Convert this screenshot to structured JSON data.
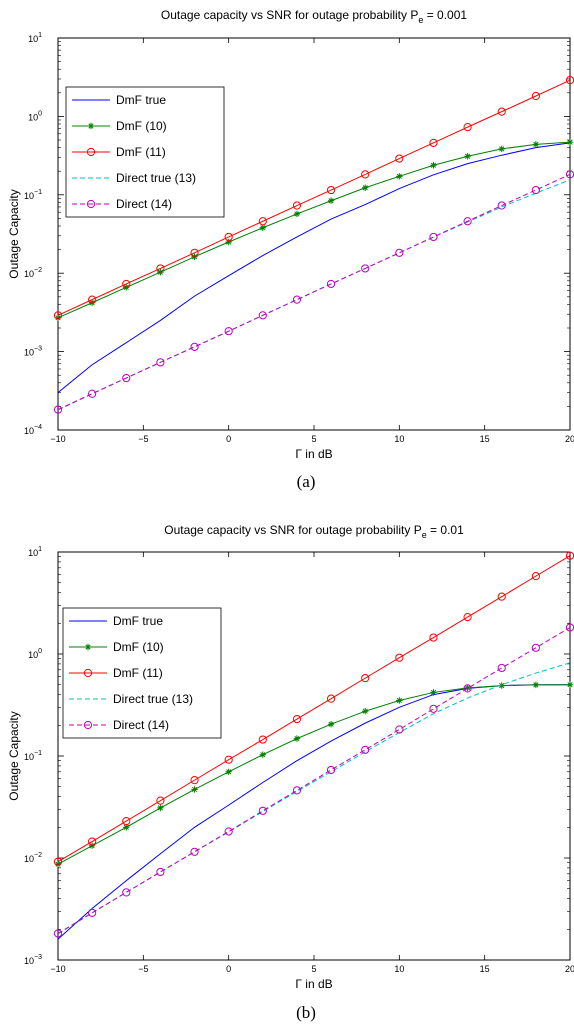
{
  "colors": {
    "dmf_true": "#0000ff",
    "dmf_10": "#008000",
    "dmf_11": "#ff0000",
    "direct_true": "#00bfbf",
    "direct_14": "#bf00bf"
  },
  "chart_data": [
    {
      "type": "line",
      "title": "Outage capacity vs SNR for outage probability P",
      "title_subscript": "e",
      "title_suffix": " = 0.001",
      "xlabel": "Γ in dB",
      "ylabel": "Outage Capacity",
      "caption": "(a)",
      "xlim": [
        -10,
        20
      ],
      "ylim": [
        0.0001,
        10
      ],
      "yscale": "log",
      "x_ticks": [
        "−10",
        "−5",
        "0",
        "5",
        "10",
        "15",
        "20"
      ],
      "y_ticks": [
        {
          "base": "10",
          "exp": "−4"
        },
        {
          "base": "10",
          "exp": "−3"
        },
        {
          "base": "10",
          "exp": "−2"
        },
        {
          "base": "10",
          "exp": "−1"
        },
        {
          "base": "10",
          "exp": "0"
        },
        {
          "base": "10",
          "exp": "1"
        }
      ],
      "legend_position": "upper-left",
      "x": [
        -10,
        -8,
        -6,
        -4,
        -2,
        0,
        2,
        4,
        6,
        8,
        10,
        12,
        14,
        16,
        18,
        20
      ],
      "series": [
        {
          "name": "DmF true",
          "color_key": "dmf_true",
          "dash": "solid",
          "marker": "none",
          "values": [
            0.0003,
            0.00068,
            0.0013,
            0.0025,
            0.0051,
            0.0093,
            0.0168,
            0.029,
            0.049,
            0.075,
            0.12,
            0.18,
            0.25,
            0.32,
            0.4,
            0.46
          ]
        },
        {
          "name": "DmF (10)",
          "color_key": "dmf_10",
          "dash": "solid",
          "marker": "star",
          "values": [
            0.0027,
            0.0042,
            0.0066,
            0.0103,
            0.0162,
            0.025,
            0.038,
            0.057,
            0.084,
            0.123,
            0.172,
            0.238,
            0.31,
            0.385,
            0.44,
            0.47
          ]
        },
        {
          "name": "DmF (11)",
          "color_key": "dmf_11",
          "dash": "solid",
          "marker": "circle",
          "values": [
            0.0029,
            0.0046,
            0.0073,
            0.0115,
            0.0182,
            0.029,
            0.046,
            0.073,
            0.115,
            0.182,
            0.29,
            0.46,
            0.73,
            1.15,
            1.82,
            2.9
          ]
        },
        {
          "name": "Direct true (13)",
          "color_key": "direct_true",
          "dash": "dashed",
          "marker": "none",
          "values": [
            0.00018,
            0.00029,
            0.00046,
            0.00073,
            0.00115,
            0.00182,
            0.0029,
            0.0046,
            0.0073,
            0.0115,
            0.0182,
            0.0288,
            0.045,
            0.07,
            0.105,
            0.155
          ]
        },
        {
          "name": "Direct (14)",
          "color_key": "direct_14",
          "dash": "dashed",
          "marker": "circle",
          "values": [
            0.000182,
            0.00029,
            0.00046,
            0.00073,
            0.00115,
            0.00182,
            0.0029,
            0.0046,
            0.0073,
            0.0115,
            0.0182,
            0.029,
            0.046,
            0.073,
            0.115,
            0.182
          ]
        }
      ]
    },
    {
      "type": "line",
      "title": "Outage capacity vs SNR for outage probability P",
      "title_subscript": "e",
      "title_suffix": " = 0.01",
      "xlabel": "Γ in dB",
      "ylabel": "Outage Capacity",
      "caption": "(b)",
      "xlim": [
        -10,
        20
      ],
      "ylim": [
        0.001,
        10
      ],
      "yscale": "log",
      "x_ticks": [
        "−10",
        "−5",
        "0",
        "5",
        "10",
        "15",
        "20"
      ],
      "y_ticks": [
        {
          "base": "10",
          "exp": "−3"
        },
        {
          "base": "10",
          "exp": "−2"
        },
        {
          "base": "10",
          "exp": "−1"
        },
        {
          "base": "10",
          "exp": "0"
        },
        {
          "base": "10",
          "exp": "1"
        }
      ],
      "legend_position": "upper-left",
      "x": [
        -10,
        -8,
        -6,
        -4,
        -2,
        0,
        2,
        4,
        6,
        8,
        10,
        12,
        14,
        16,
        18,
        20
      ],
      "series": [
        {
          "name": "DmF true",
          "color_key": "dmf_true",
          "dash": "solid",
          "marker": "none",
          "values": [
            0.0016,
            0.0032,
            0.006,
            0.011,
            0.02,
            0.033,
            0.055,
            0.09,
            0.14,
            0.21,
            0.3,
            0.4,
            0.46,
            0.49,
            0.5,
            0.5
          ]
        },
        {
          "name": "DmF (10)",
          "color_key": "dmf_10",
          "dash": "solid",
          "marker": "star",
          "values": [
            0.0087,
            0.0132,
            0.02,
            0.031,
            0.047,
            0.07,
            0.103,
            0.148,
            0.205,
            0.275,
            0.35,
            0.42,
            0.465,
            0.49,
            0.498,
            0.5
          ]
        },
        {
          "name": "DmF (11)",
          "color_key": "dmf_11",
          "dash": "solid",
          "marker": "circle",
          "values": [
            0.0092,
            0.0145,
            0.023,
            0.0365,
            0.058,
            0.092,
            0.145,
            0.23,
            0.365,
            0.58,
            0.92,
            1.45,
            2.3,
            3.65,
            5.8,
            9.2
          ]
        },
        {
          "name": "Direct true (13)",
          "color_key": "direct_true",
          "dash": "dashed",
          "marker": "none",
          "values": [
            0.0018,
            0.0029,
            0.0046,
            0.0073,
            0.0115,
            0.018,
            0.0285,
            0.045,
            0.07,
            0.11,
            0.17,
            0.26,
            0.37,
            0.5,
            0.65,
            0.82
          ]
        },
        {
          "name": "Direct (14)",
          "color_key": "direct_14",
          "dash": "dashed",
          "marker": "circle",
          "values": [
            0.00182,
            0.0029,
            0.0046,
            0.0073,
            0.0115,
            0.0182,
            0.029,
            0.046,
            0.073,
            0.115,
            0.182,
            0.29,
            0.46,
            0.73,
            1.15,
            1.82
          ]
        }
      ]
    }
  ]
}
